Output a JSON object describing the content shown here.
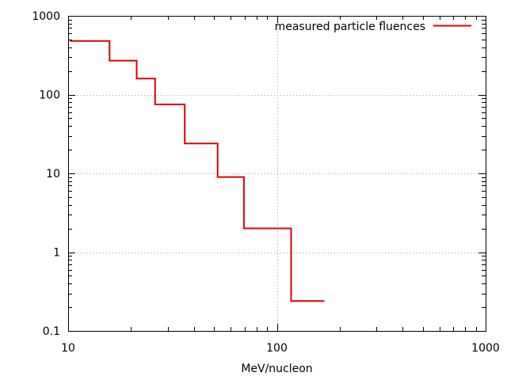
{
  "chart_data": {
    "type": "line",
    "xlabel": "MeV/nucleon",
    "ylabel": "",
    "xscale": "log",
    "yscale": "log",
    "xlim": [
      10,
      1000
    ],
    "ylim": [
      0.1,
      1000
    ],
    "grid": true,
    "legend_position": "top-right",
    "x_ticks": [
      {
        "value": 10,
        "label": "10"
      },
      {
        "value": 100,
        "label": "100"
      },
      {
        "value": 1000,
        "label": "1000"
      }
    ],
    "y_ticks": [
      {
        "value": 0.1,
        "label": "0.1"
      },
      {
        "value": 1,
        "label": "1"
      },
      {
        "value": 10,
        "label": "10"
      },
      {
        "value": 100,
        "label": "100"
      },
      {
        "value": 1000,
        "label": "1000"
      }
    ],
    "series": [
      {
        "name": "measured particle fluences",
        "color": "#e00000",
        "style": "step",
        "x": [
          10.2,
          15.8,
          15.8,
          21.3,
          21.3,
          26.1,
          26.1,
          36.2,
          36.2,
          52.0,
          52.0,
          69.5,
          69.5,
          117.0,
          117.0,
          169.0
        ],
        "y": [
          480,
          480,
          270,
          270,
          160,
          160,
          75,
          75,
          24,
          24,
          9,
          9,
          2,
          2,
          0.24,
          0.24
        ]
      }
    ]
  }
}
